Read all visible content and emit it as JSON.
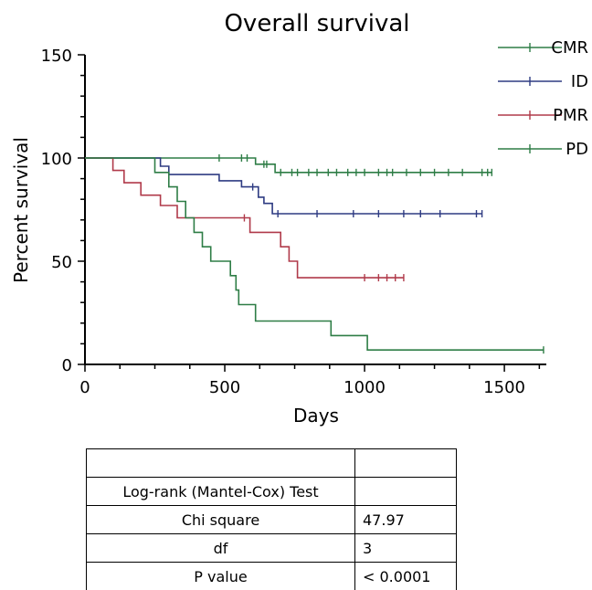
{
  "chart_data": {
    "type": "line",
    "title": "Overall survival",
    "xlabel": "Days",
    "ylabel": "Percent survival",
    "xlim": [
      0,
      1650
    ],
    "ylim": [
      0,
      150
    ],
    "x_ticks": [
      0,
      500,
      1000,
      1500
    ],
    "y_ticks": [
      0,
      50,
      100,
      150
    ],
    "legend_position": "top-right",
    "series": [
      {
        "name": "CMR",
        "color": "#2e7d46",
        "steps": [
          [
            0,
            100
          ],
          [
            610,
            100
          ],
          [
            610,
            97
          ],
          [
            680,
            97
          ],
          [
            680,
            93
          ],
          [
            1455,
            93
          ]
        ],
        "censored": [
          [
            480,
            100
          ],
          [
            560,
            100
          ],
          [
            580,
            100
          ],
          [
            640,
            97
          ],
          [
            650,
            97
          ],
          [
            700,
            93
          ],
          [
            740,
            93
          ],
          [
            760,
            93
          ],
          [
            800,
            93
          ],
          [
            830,
            93
          ],
          [
            870,
            93
          ],
          [
            900,
            93
          ],
          [
            940,
            93
          ],
          [
            970,
            93
          ],
          [
            1000,
            93
          ],
          [
            1050,
            93
          ],
          [
            1080,
            93
          ],
          [
            1100,
            93
          ],
          [
            1150,
            93
          ],
          [
            1200,
            93
          ],
          [
            1250,
            93
          ],
          [
            1300,
            93
          ],
          [
            1350,
            93
          ],
          [
            1420,
            93
          ],
          [
            1440,
            93
          ],
          [
            1455,
            93
          ]
        ]
      },
      {
        "name": "ID",
        "color": "#2e3b82",
        "steps": [
          [
            0,
            100
          ],
          [
            270,
            100
          ],
          [
            270,
            96
          ],
          [
            300,
            96
          ],
          [
            300,
            92
          ],
          [
            480,
            92
          ],
          [
            480,
            89
          ],
          [
            560,
            89
          ],
          [
            560,
            86
          ],
          [
            620,
            86
          ],
          [
            620,
            81
          ],
          [
            640,
            81
          ],
          [
            640,
            78
          ],
          [
            670,
            78
          ],
          [
            670,
            73
          ],
          [
            1420,
            73
          ]
        ],
        "censored": [
          [
            600,
            86
          ],
          [
            690,
            73
          ],
          [
            830,
            73
          ],
          [
            960,
            73
          ],
          [
            1050,
            73
          ],
          [
            1140,
            73
          ],
          [
            1200,
            73
          ],
          [
            1270,
            73
          ],
          [
            1400,
            73
          ],
          [
            1420,
            73
          ]
        ]
      },
      {
        "name": "PMR",
        "color": "#b03a4a",
        "steps": [
          [
            0,
            100
          ],
          [
            100,
            100
          ],
          [
            100,
            94
          ],
          [
            140,
            94
          ],
          [
            140,
            88
          ],
          [
            200,
            88
          ],
          [
            200,
            82
          ],
          [
            270,
            82
          ],
          [
            270,
            77
          ],
          [
            330,
            77
          ],
          [
            330,
            71
          ],
          [
            590,
            71
          ],
          [
            590,
            64
          ],
          [
            700,
            64
          ],
          [
            700,
            57
          ],
          [
            730,
            57
          ],
          [
            730,
            50
          ],
          [
            760,
            50
          ],
          [
            760,
            42
          ],
          [
            1140,
            42
          ]
        ],
        "censored": [
          [
            570,
            71
          ],
          [
            1000,
            42
          ],
          [
            1050,
            42
          ],
          [
            1080,
            42
          ],
          [
            1110,
            42
          ],
          [
            1140,
            42
          ]
        ]
      },
      {
        "name": "PD",
        "color": "#2e7d46",
        "steps": [
          [
            0,
            100
          ],
          [
            250,
            100
          ],
          [
            250,
            93
          ],
          [
            300,
            93
          ],
          [
            300,
            86
          ],
          [
            330,
            86
          ],
          [
            330,
            79
          ],
          [
            360,
            79
          ],
          [
            360,
            71
          ],
          [
            390,
            71
          ],
          [
            390,
            64
          ],
          [
            420,
            64
          ],
          [
            420,
            57
          ],
          [
            450,
            57
          ],
          [
            450,
            50
          ],
          [
            520,
            50
          ],
          [
            520,
            43
          ],
          [
            540,
            43
          ],
          [
            540,
            36
          ],
          [
            550,
            36
          ],
          [
            550,
            29
          ],
          [
            610,
            29
          ],
          [
            610,
            21
          ],
          [
            880,
            21
          ],
          [
            880,
            14
          ],
          [
            1010,
            14
          ],
          [
            1010,
            7
          ],
          [
            1640,
            7
          ]
        ],
        "censored": [
          [
            1640,
            7
          ]
        ]
      }
    ]
  },
  "stats": {
    "header": [
      "",
      ""
    ],
    "rows": [
      [
        "Log-rank (Mantel-Cox) Test",
        ""
      ],
      [
        "Chi square",
        "47.97"
      ],
      [
        "df",
        "3"
      ],
      [
        "P value",
        "< 0.0001"
      ]
    ]
  }
}
